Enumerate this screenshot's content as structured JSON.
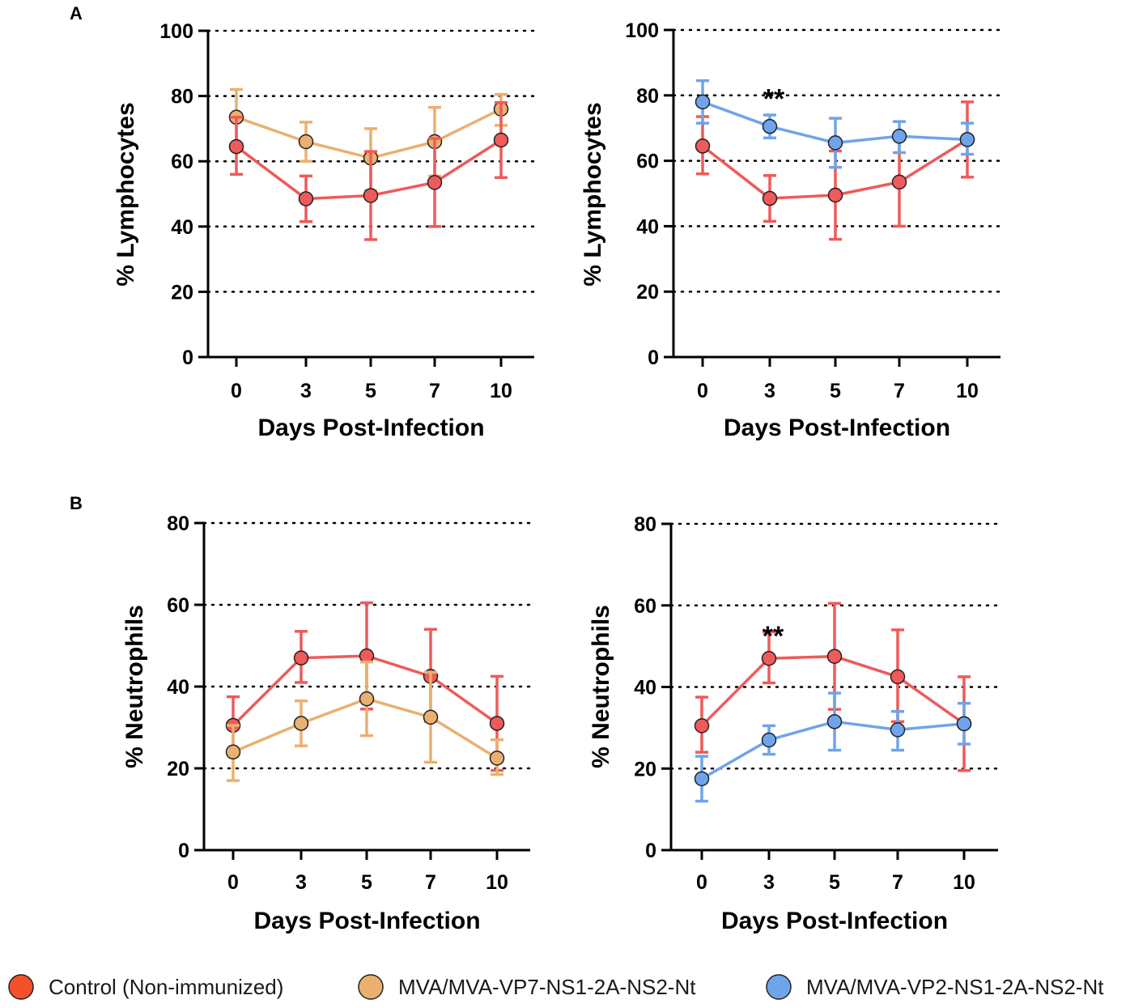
{
  "panel_labels": [
    "A",
    "B"
  ],
  "colors": {
    "control": "#ef5a5a",
    "control_legend": "#f4502a",
    "vp7": "#eab06f",
    "vp2": "#6fa4ea"
  },
  "legend": [
    {
      "label": "Control (Non-immunized)",
      "color": "#f4502a",
      "icon": "circle-marker-icon"
    },
    {
      "label": "MVA/MVA-VP7-NS1-2A-NS2-Nt",
      "color": "#eab06f",
      "icon": "circle-marker-icon"
    },
    {
      "label": "MVA/MVA-VP2-NS1-2A-NS2-Nt",
      "color": "#6fa4ea",
      "icon": "circle-marker-icon"
    }
  ],
  "chart_data": [
    {
      "type": "line",
      "panel": "A",
      "ylabel": "% Lymphocytes",
      "xlabel": "Days Post-Infection",
      "categories": [
        "0",
        "3",
        "5",
        "7",
        "10"
      ],
      "x": [
        0,
        3,
        5,
        7,
        10
      ],
      "ylim": [
        0,
        100
      ],
      "yticks": [
        "0",
        "20",
        "40",
        "60",
        "80",
        "100"
      ],
      "grid": "dotted",
      "annotation": "",
      "series": [
        {
          "name": "MVA/MVA-VP7-NS1-2A-NS2-Nt",
          "color": "#eab06f",
          "values": [
            73.5,
            66,
            61,
            66,
            76
          ],
          "err_hi": [
            82,
            72,
            70,
            76.5,
            80.5
          ],
          "err_lo": [
            65,
            60,
            51,
            55.5,
            71
          ]
        },
        {
          "name": "Control (Non-immunized)",
          "color": "#ef5a5a",
          "values": [
            64.5,
            48.5,
            49.5,
            53.5,
            66.5
          ],
          "err_hi": [
            73.5,
            55.5,
            63,
            67,
            78
          ],
          "err_lo": [
            56,
            41.5,
            36,
            40,
            55
          ]
        }
      ]
    },
    {
      "type": "line",
      "panel": "A",
      "ylabel": "% Lymphocytes",
      "xlabel": "Days Post-Infection",
      "categories": [
        "0",
        "3",
        "5",
        "7",
        "10"
      ],
      "x": [
        0,
        3,
        5,
        7,
        10
      ],
      "ylim": [
        0,
        100
      ],
      "yticks": [
        "0",
        "20",
        "40",
        "60",
        "80",
        "100"
      ],
      "grid": "dotted",
      "annotation": "**",
      "annotation_x": 3,
      "annotation_y": 82,
      "series": [
        {
          "name": "Control (Non-immunized)",
          "color": "#ef5a5a",
          "values": [
            64.5,
            48.5,
            49.5,
            53.5,
            66.5
          ],
          "err_hi": [
            73.5,
            55.5,
            63,
            67,
            78
          ],
          "err_lo": [
            56,
            41.5,
            36,
            40,
            55
          ]
        },
        {
          "name": "MVA/MVA-VP2-NS1-2A-NS2-Nt",
          "color": "#6fa4ea",
          "values": [
            78,
            70.5,
            65.5,
            67.5,
            66.5
          ],
          "err_hi": [
            84.5,
            74,
            73,
            72,
            71.5
          ],
          "err_lo": [
            71.5,
            67,
            58,
            62.5,
            62
          ]
        }
      ]
    },
    {
      "type": "line",
      "panel": "B",
      "ylabel": "% Neutrophils",
      "xlabel": "Days Post-Infection",
      "categories": [
        "0",
        "3",
        "5",
        "7",
        "10"
      ],
      "x": [
        0,
        3,
        5,
        7,
        10
      ],
      "ylim": [
        0,
        80
      ],
      "yticks": [
        "0",
        "20",
        "40",
        "60",
        "80"
      ],
      "grid": "dotted",
      "annotation": "",
      "series": [
        {
          "name": "Control (Non-immunized)",
          "color": "#ef5a5a",
          "values": [
            30.5,
            47,
            47.5,
            42.5,
            31
          ],
          "err_hi": [
            37.5,
            53.5,
            60.5,
            54,
            42.5
          ],
          "err_lo": [
            24,
            41,
            34.5,
            31.5,
            19.5
          ]
        },
        {
          "name": "MVA/MVA-VP7-NS1-2A-NS2-Nt",
          "color": "#eab06f",
          "values": [
            24,
            31,
            37,
            32.5,
            22.5
          ],
          "err_hi": [
            30.5,
            36.5,
            46,
            43.5,
            27
          ],
          "err_lo": [
            17,
            25.5,
            28,
            21.5,
            18.5
          ]
        }
      ]
    },
    {
      "type": "line",
      "panel": "B",
      "ylabel": "% Neutrophils",
      "xlabel": "Days Post-Infection",
      "categories": [
        "0",
        "3",
        "5",
        "7",
        "10"
      ],
      "x": [
        0,
        3,
        5,
        7,
        10
      ],
      "ylim": [
        0,
        80
      ],
      "yticks": [
        "0",
        "20",
        "40",
        "60",
        "80"
      ],
      "grid": "dotted",
      "annotation": "**",
      "annotation_x": 3,
      "annotation_y": 55,
      "series": [
        {
          "name": "Control (Non-immunized)",
          "color": "#ef5a5a",
          "values": [
            30.5,
            47,
            47.5,
            42.5,
            31
          ],
          "err_hi": [
            37.5,
            53.5,
            60.5,
            54,
            42.5
          ],
          "err_lo": [
            24,
            41,
            34.5,
            31.5,
            19.5
          ]
        },
        {
          "name": "MVA/MVA-VP2-NS1-2A-NS2-Nt",
          "color": "#6fa4ea",
          "values": [
            17.5,
            27,
            31.5,
            29.5,
            31
          ],
          "err_hi": [
            23,
            30.5,
            38.5,
            34,
            36
          ],
          "err_lo": [
            12,
            23.5,
            24.5,
            24.5,
            26
          ]
        }
      ]
    }
  ]
}
